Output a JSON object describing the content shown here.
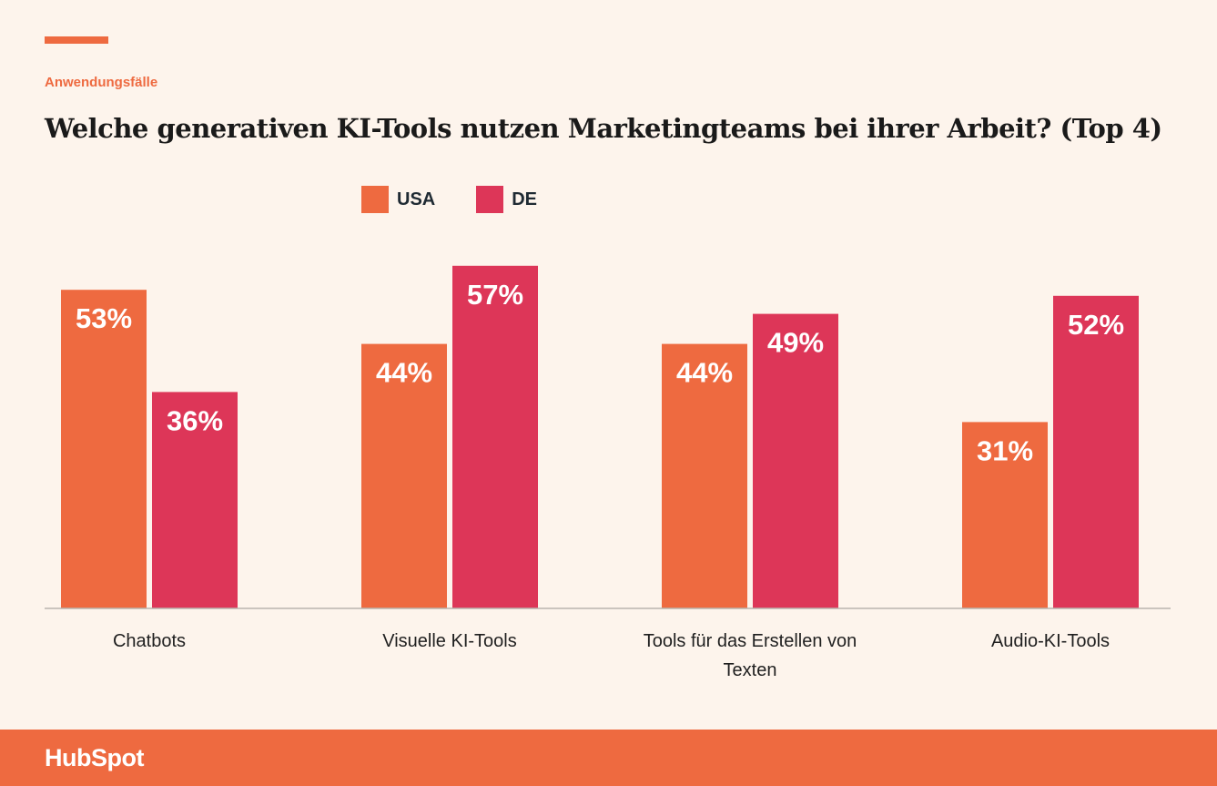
{
  "header": {
    "eyebrow": "Anwendungsfälle",
    "title": "Welche generativen KI-Tools nutzen Marketingteams bei ihrer Arbeit? (Top 4)"
  },
  "colors": {
    "usa": "#ee6a40",
    "de": "#dd3658",
    "accent": "#ee6a40",
    "axis": "#b9b4ae"
  },
  "chart_data": {
    "type": "bar",
    "categories": [
      [
        "Chatbots"
      ],
      [
        "Visuelle KI-Tools"
      ],
      [
        "Tools für das Erstellen von",
        "Texten"
      ],
      [
        "Audio-KI-Tools"
      ]
    ],
    "series": [
      {
        "name": "USA",
        "values": [
          53,
          44,
          44,
          31
        ],
        "labels": [
          "53%",
          "44%",
          "44%",
          "31%"
        ],
        "color": "#ee6a40"
      },
      {
        "name": "DE",
        "values": [
          36,
          57,
          49,
          52
        ],
        "labels": [
          "36%",
          "57%",
          "49%",
          "52%"
        ],
        "color": "#dd3658"
      }
    ],
    "ylim": [
      0,
      100
    ],
    "legend_position": "top",
    "grid": false
  },
  "footer": {
    "logo": "HubSpot"
  }
}
